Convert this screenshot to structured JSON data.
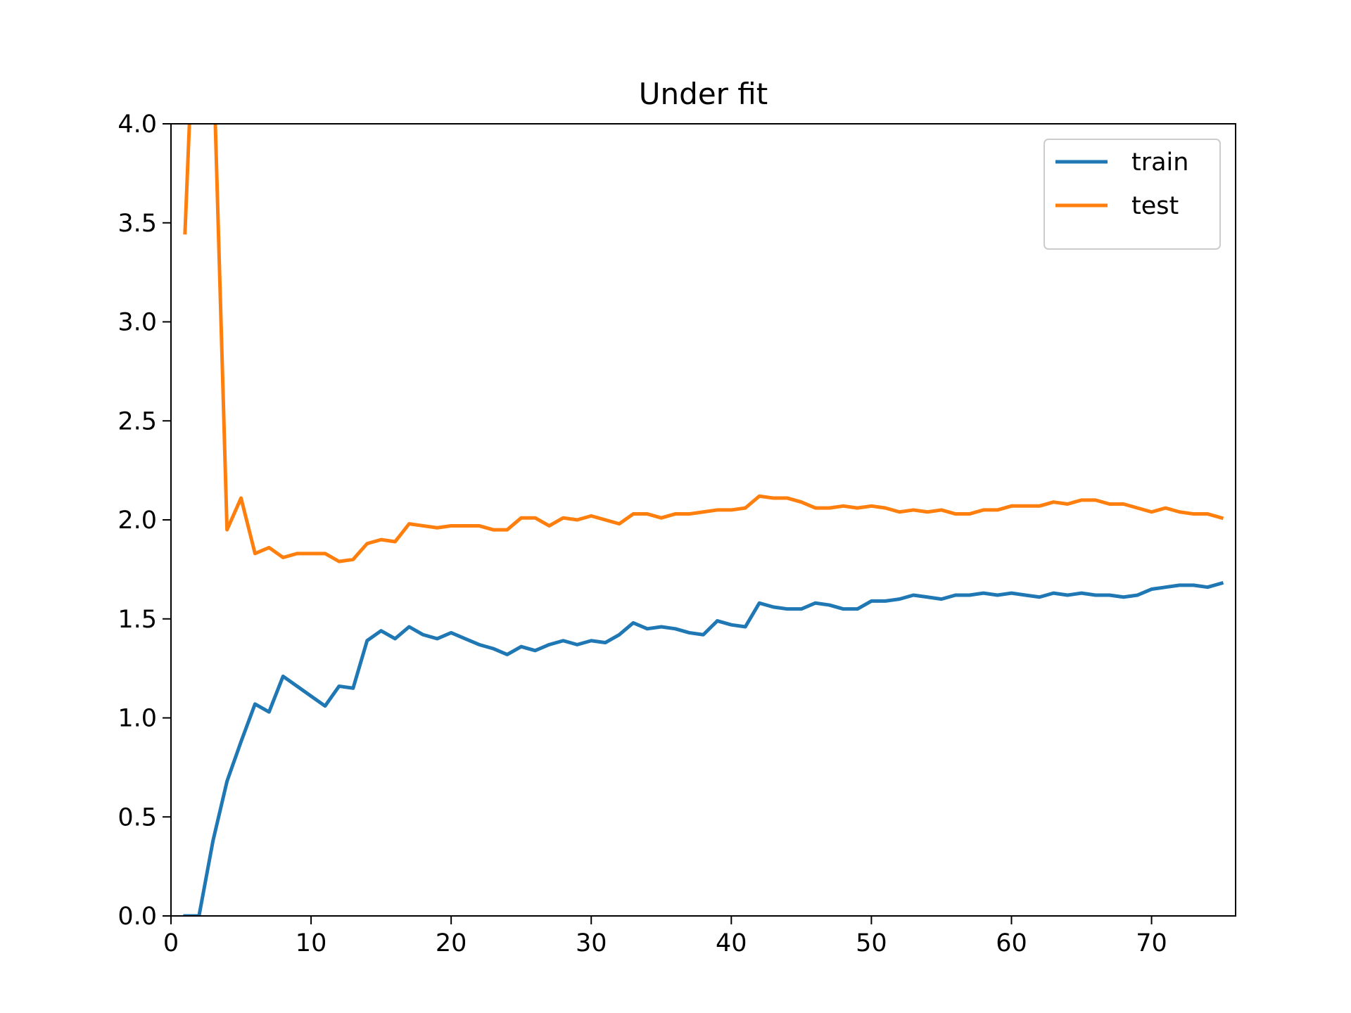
{
  "chart_data": {
    "type": "line",
    "title": "Under fit",
    "xlabel": "",
    "ylabel": "",
    "xlim": [
      0,
      76
    ],
    "ylim": [
      0,
      4.0
    ],
    "xticks": [
      0,
      10,
      20,
      30,
      40,
      50,
      60,
      70
    ],
    "xtick_labels": [
      "0",
      "10",
      "20",
      "30",
      "40",
      "50",
      "60",
      "70"
    ],
    "yticks": [
      0,
      0.5,
      1.0,
      1.5,
      2.0,
      2.5,
      3.0,
      3.5,
      4.0
    ],
    "ytick_labels": [
      "0.0",
      "0.5",
      "1.0",
      "1.5",
      "2.0",
      "2.5",
      "3.0",
      "3.5",
      "4.0"
    ],
    "grid": false,
    "legend_position": "top-right",
    "x": [
      1,
      2,
      3,
      4,
      5,
      6,
      7,
      8,
      9,
      10,
      11,
      12,
      13,
      14,
      15,
      16,
      17,
      18,
      19,
      20,
      21,
      22,
      23,
      24,
      25,
      26,
      27,
      28,
      29,
      30,
      31,
      32,
      33,
      34,
      35,
      36,
      37,
      38,
      39,
      40,
      41,
      42,
      43,
      44,
      45,
      46,
      47,
      48,
      49,
      50,
      51,
      52,
      53,
      54,
      55,
      56,
      57,
      58,
      59,
      60,
      61,
      62,
      63,
      64,
      65,
      66,
      67,
      68,
      69,
      70,
      71,
      72,
      73,
      74,
      75
    ],
    "series": [
      {
        "name": "train",
        "color": "#1f77b4",
        "values": [
          0.0,
          0.0,
          0.38,
          0.68,
          0.88,
          1.07,
          1.03,
          1.21,
          1.16,
          1.11,
          1.06,
          1.16,
          1.15,
          1.39,
          1.44,
          1.4,
          1.46,
          1.42,
          1.4,
          1.43,
          1.4,
          1.37,
          1.35,
          1.32,
          1.36,
          1.34,
          1.37,
          1.39,
          1.37,
          1.39,
          1.38,
          1.42,
          1.48,
          1.45,
          1.46,
          1.45,
          1.43,
          1.42,
          1.49,
          1.47,
          1.46,
          1.58,
          1.56,
          1.55,
          1.55,
          1.58,
          1.57,
          1.55,
          1.55,
          1.59,
          1.59,
          1.6,
          1.62,
          1.61,
          1.6,
          1.62,
          1.62,
          1.63,
          1.62,
          1.63,
          1.62,
          1.61,
          1.63,
          1.62,
          1.63,
          1.62,
          1.62,
          1.61,
          1.62,
          1.65,
          1.66,
          1.67,
          1.67,
          1.66,
          1.68
        ]
      },
      {
        "name": "test",
        "color": "#ff7f0e",
        "values": [
          3.45,
          5.2,
          4.4,
          1.95,
          2.11,
          1.83,
          1.86,
          1.81,
          1.83,
          1.83,
          1.83,
          1.79,
          1.8,
          1.88,
          1.9,
          1.89,
          1.98,
          1.97,
          1.96,
          1.97,
          1.97,
          1.97,
          1.95,
          1.95,
          2.01,
          2.01,
          1.97,
          2.01,
          2.0,
          2.02,
          2.0,
          1.98,
          2.03,
          2.03,
          2.01,
          2.03,
          2.03,
          2.04,
          2.05,
          2.05,
          2.06,
          2.12,
          2.11,
          2.11,
          2.09,
          2.06,
          2.06,
          2.07,
          2.06,
          2.07,
          2.06,
          2.04,
          2.05,
          2.04,
          2.05,
          2.03,
          2.03,
          2.05,
          2.05,
          2.07,
          2.07,
          2.07,
          2.09,
          2.08,
          2.1,
          2.1,
          2.08,
          2.08,
          2.06,
          2.04,
          2.06,
          2.04,
          2.03,
          2.03,
          2.01
        ]
      }
    ]
  }
}
